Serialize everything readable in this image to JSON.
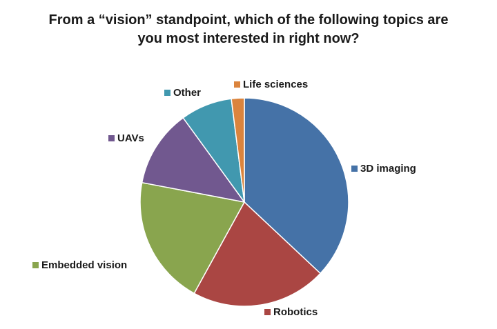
{
  "chart_data": {
    "type": "pie",
    "title_lines": [
      "From a “vision” standpoint, which of the following topics are",
      "you most interested in right now?"
    ],
    "start_angle_deg": 0,
    "direction": "clockwise",
    "legend": "none (category labels beside slices)",
    "slices": [
      {
        "label": "3D imaging",
        "value": 37,
        "color": "#4572a7"
      },
      {
        "label": "Robotics",
        "value": 21,
        "color": "#aa4643"
      },
      {
        "label": "Embedded vision",
        "value": 20,
        "color": "#89a54e"
      },
      {
        "label": "UAVs",
        "value": 12,
        "color": "#71588f"
      },
      {
        "label": "Other",
        "value": 8,
        "color": "#4198af"
      },
      {
        "label": "Life sciences",
        "value": 2,
        "color": "#db843d"
      }
    ]
  }
}
